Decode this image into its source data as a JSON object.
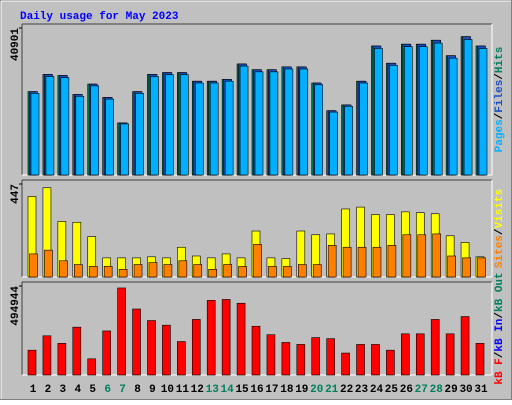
{
  "chart_data": {
    "type": "bar",
    "title": "Daily usage for May 2023",
    "categories": [
      "1",
      "2",
      "3",
      "4",
      "5",
      "6",
      "7",
      "8",
      "9",
      "10",
      "11",
      "12",
      "13",
      "14",
      "15",
      "16",
      "17",
      "18",
      "19",
      "20",
      "21",
      "22",
      "23",
      "24",
      "25",
      "26",
      "27",
      "28",
      "29",
      "30",
      "31"
    ],
    "category_colors": [
      "#000000",
      "#000000",
      "#000000",
      "#000000",
      "#000000",
      "#00805c",
      "#00805c",
      "#000000",
      "#000000",
      "#000000",
      "#000000",
      "#000000",
      "#00805c",
      "#00805c",
      "#000000",
      "#000000",
      "#000000",
      "#000000",
      "#000000",
      "#00805c",
      "#00805c",
      "#000000",
      "#000000",
      "#000000",
      "#000000",
      "#000000",
      "#00805c",
      "#00805c",
      "#000000",
      "#000000",
      "#000000"
    ],
    "panels": [
      {
        "ylim": [
          0,
          40901
        ],
        "yticks": [
          40901
        ],
        "series": [
          {
            "name": "Hits",
            "color": "#00805c",
            "values": [
              23200,
              28000,
              27700,
              22400,
              25300,
              21600,
              14500,
              23200,
              28000,
              28500,
              28500,
              26100,
              26100,
              26600,
              30900,
              29300,
              29300,
              30100,
              30100,
              25600,
              17900,
              19500,
              26100,
              35900,
              31100,
              36400,
              36400,
              37500,
              33200,
              38500,
              35900
            ]
          },
          {
            "name": "Files",
            "color": "#1a4fbf",
            "values": [
              23200,
              28000,
              27700,
              22400,
              25300,
              21600,
              14500,
              23200,
              28000,
              28500,
              28500,
              26100,
              26100,
              26600,
              30900,
              29300,
              29300,
              30100,
              30100,
              25600,
              17900,
              19500,
              26100,
              35900,
              31100,
              36400,
              36400,
              37500,
              33200,
              38500,
              35900
            ]
          },
          {
            "name": "Pages",
            "color": "#00b0ff",
            "values": [
              22700,
              27400,
              27100,
              21900,
              24800,
              21100,
              14200,
              22700,
              27400,
              27900,
              27900,
              25600,
              25600,
              26100,
              30300,
              28700,
              28700,
              29500,
              29500,
              25100,
              17500,
              19100,
              25600,
              35200,
              30500,
              35700,
              35700,
              36700,
              32500,
              37700,
              35200
            ]
          }
        ]
      },
      {
        "ylim": [
          0,
          447
        ],
        "yticks": [
          447
        ],
        "series": [
          {
            "name": "Visits",
            "color": "#ffff00",
            "values": [
              387,
              429,
              267,
              263,
              194,
              92,
              92,
              92,
              97,
              92,
              143,
              101,
              92,
              111,
              92,
              221,
              92,
              88,
              221,
              203,
              207,
              327,
              336,
              300,
              300,
              313,
              309,
              304,
              198,
              166,
              97
            ]
          },
          {
            "name": "Sites",
            "color": "#ff8000",
            "values": [
              111,
              129,
              78,
              60,
              51,
              51,
              37,
              60,
              69,
              60,
              78,
              60,
              37,
              60,
              51,
              157,
              51,
              51,
              60,
              60,
              152,
              143,
              143,
              143,
              152,
              203,
              203,
              207,
              101,
              92,
              92
            ]
          }
        ]
      },
      {
        "ylim": [
          0,
          494944
        ],
        "yticks": [
          494944
        ],
        "series": [
          {
            "name": "kB F",
            "color": "#ff0000",
            "values": [
              138000,
              218000,
              176000,
              266000,
              90000,
              245000,
              484000,
              367000,
              303000,
              277000,
              186000,
              309000,
              415000,
              420000,
              399000,
              271000,
              224000,
              181000,
              170000,
              208000,
              202000,
              122000,
              170000,
              170000,
              138000,
              229000,
              229000,
              309000,
              229000,
              325000,
              176000
            ]
          }
        ],
        "extra_legend": [
          {
            "name": "kB In",
            "color": "#0000ff"
          },
          {
            "name": "kB Out",
            "color": "#00805c"
          }
        ]
      }
    ]
  }
}
